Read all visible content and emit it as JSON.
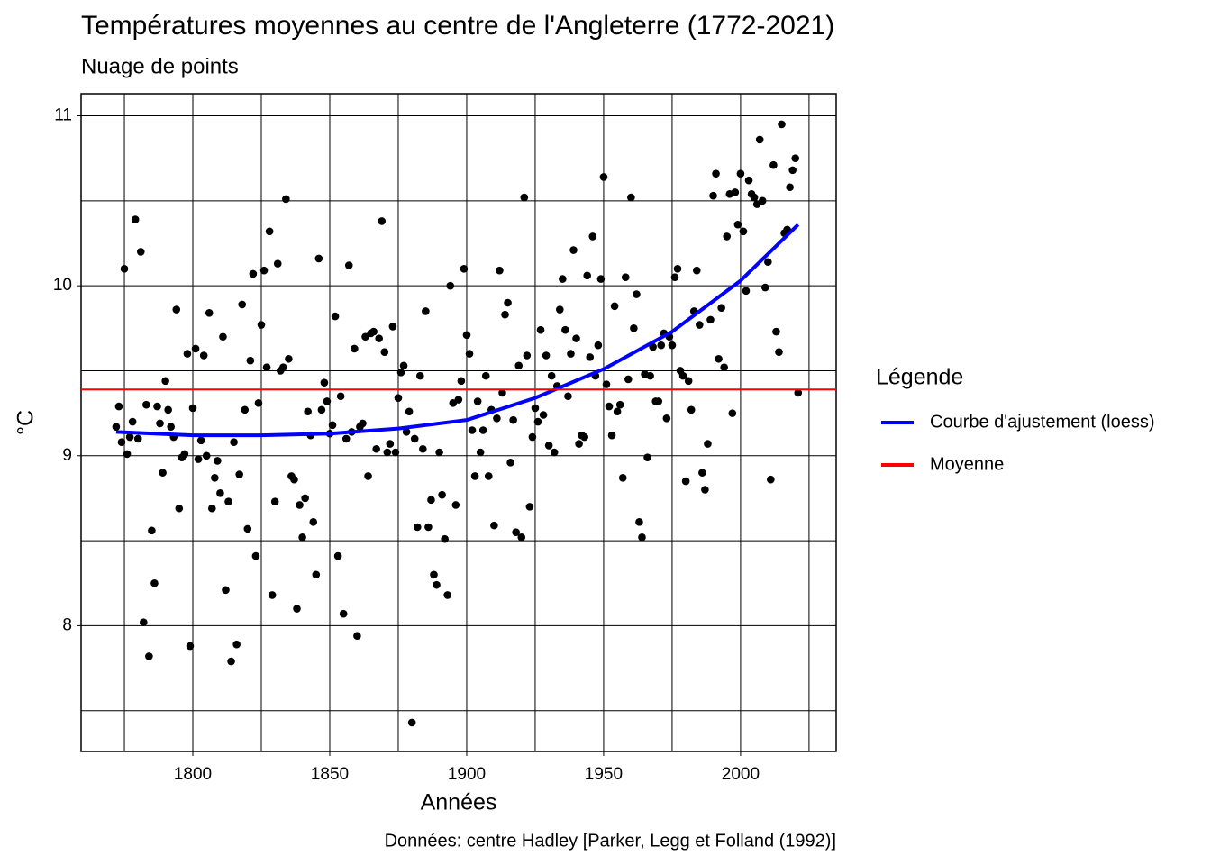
{
  "chart_data": {
    "type": "scatter",
    "title": "Températures moyennes au centre de l'Angleterre (1772-2021)",
    "subtitle": "Nuage de points",
    "xlabel": "Années",
    "ylabel": "°C",
    "caption": "Données: centre Hadley [Parker, Legg et Folland (1992)]",
    "legend_title": "Légende",
    "legend_position": "right",
    "xlim": [
      1759.2,
      2034.9
    ],
    "ylim": [
      7.26,
      11.13
    ],
    "xticks": [
      1800,
      1850,
      1900,
      1950,
      2000
    ],
    "yticks": [
      8,
      9,
      10,
      11
    ],
    "x_minor_grid": [
      1775,
      1825,
      1875,
      1925,
      1975,
      2025
    ],
    "y_minor_grid": [
      7.5,
      8.5,
      9.5,
      10.5
    ],
    "grid": true,
    "points": {
      "color": "#000000",
      "x": [
        1772,
        1773,
        1774,
        1775,
        1776,
        1777,
        1778,
        1779,
        1780,
        1781,
        1782,
        1783,
        1784,
        1785,
        1786,
        1787,
        1788,
        1789,
        1790,
        1791,
        1792,
        1793,
        1794,
        1795,
        1796,
        1797,
        1798,
        1799,
        1800,
        1801,
        1802,
        1803,
        1804,
        1805,
        1806,
        1807,
        1808,
        1809,
        1810,
        1811,
        1812,
        1813,
        1814,
        1815,
        1816,
        1817,
        1818,
        1819,
        1820,
        1821,
        1822,
        1823,
        1824,
        1825,
        1826,
        1827,
        1828,
        1829,
        1830,
        1831,
        1832,
        1833,
        1834,
        1835,
        1836,
        1837,
        1838,
        1839,
        1840,
        1841,
        1842,
        1843,
        1844,
        1845,
        1846,
        1847,
        1848,
        1849,
        1850,
        1851,
        1852,
        1853,
        1854,
        1855,
        1856,
        1857,
        1858,
        1859,
        1860,
        1861,
        1862,
        1863,
        1864,
        1865,
        1866,
        1867,
        1868,
        1869,
        1870,
        1871,
        1872,
        1873,
        1874,
        1875,
        1876,
        1877,
        1878,
        1879,
        1880,
        1881,
        1882,
        1883,
        1884,
        1885,
        1886,
        1887,
        1888,
        1889,
        1890,
        1891,
        1892,
        1893,
        1894,
        1895,
        1896,
        1897,
        1898,
        1899,
        1900,
        1901,
        1902,
        1903,
        1904,
        1905,
        1906,
        1907,
        1908,
        1909,
        1910,
        1911,
        1912,
        1913,
        1914,
        1915,
        1916,
        1917,
        1918,
        1919,
        1920,
        1921,
        1922,
        1923,
        1924,
        1925,
        1926,
        1927,
        1928,
        1929,
        1930,
        1931,
        1932,
        1933,
        1934,
        1935,
        1936,
        1937,
        1938,
        1939,
        1940,
        1941,
        1942,
        1943,
        1944,
        1945,
        1946,
        1947,
        1948,
        1949,
        1950,
        1951,
        1952,
        1953,
        1954,
        1955,
        1956,
        1957,
        1958,
        1959,
        1960,
        1961,
        1962,
        1963,
        1964,
        1965,
        1966,
        1967,
        1968,
        1969,
        1970,
        1971,
        1972,
        1973,
        1974,
        1975,
        1976,
        1977,
        1978,
        1979,
        1980,
        1981,
        1982,
        1983,
        1984,
        1985,
        1986,
        1987,
        1988,
        1989,
        1990,
        1991,
        1992,
        1993,
        1994,
        1995,
        1996,
        1997,
        1998,
        1999,
        2000,
        2001,
        2002,
        2003,
        2004,
        2005,
        2006,
        2007,
        2008,
        2009,
        2010,
        2011,
        2012,
        2013,
        2014,
        2015,
        2016,
        2017,
        2018,
        2019,
        2020,
        2021
      ],
      "values": [
        9.17,
        9.29,
        9.08,
        10.1,
        9.01,
        9.11,
        9.2,
        10.39,
        9.1,
        10.2,
        8.02,
        9.3,
        7.82,
        8.56,
        8.25,
        9.29,
        9.19,
        8.9,
        9.44,
        9.27,
        9.17,
        9.11,
        9.86,
        8.69,
        8.99,
        9.01,
        9.6,
        7.88,
        9.28,
        9.63,
        8.98,
        9.09,
        9.59,
        9.0,
        9.84,
        8.69,
        8.87,
        8.97,
        8.78,
        9.7,
        8.21,
        8.73,
        7.79,
        9.08,
        7.89,
        8.89,
        9.89,
        9.27,
        8.57,
        9.56,
        10.07,
        8.41,
        9.31,
        9.77,
        10.09,
        9.52,
        10.32,
        8.18,
        8.73,
        10.13,
        9.5,
        9.52,
        10.51,
        9.57,
        8.88,
        8.86,
        8.1,
        8.71,
        8.52,
        8.75,
        9.26,
        9.12,
        8.61,
        8.3,
        10.16,
        9.27,
        9.43,
        9.32,
        9.13,
        9.18,
        9.82,
        8.41,
        9.35,
        8.07,
        9.1,
        10.12,
        9.14,
        9.63,
        7.94,
        9.17,
        9.19,
        9.7,
        8.88,
        9.72,
        9.73,
        9.04,
        9.69,
        10.38,
        9.61,
        9.02,
        9.07,
        9.76,
        9.02,
        9.34,
        9.49,
        9.53,
        9.14,
        9.26,
        7.43,
        9.1,
        8.58,
        9.47,
        9.04,
        9.85,
        8.58,
        8.74,
        8.3,
        8.24,
        9.02,
        8.77,
        8.51,
        8.18,
        10.0,
        9.31,
        8.71,
        9.33,
        9.44,
        10.1,
        9.71,
        9.6,
        9.15,
        8.88,
        9.32,
        9.02,
        9.15,
        9.47,
        8.88,
        9.27,
        8.59,
        9.22,
        10.09,
        9.37,
        9.83,
        9.9,
        8.96,
        9.21,
        8.55,
        9.53,
        8.52,
        10.52,
        9.59,
        8.7,
        9.11,
        9.28,
        9.2,
        9.74,
        9.24,
        9.59,
        9.06,
        9.47,
        9.02,
        9.41,
        9.86,
        10.04,
        9.74,
        9.35,
        9.6,
        10.21,
        9.69,
        9.07,
        9.12,
        9.11,
        10.06,
        9.58,
        10.29,
        9.47,
        9.65,
        10.04,
        10.64,
        9.42,
        9.29,
        9.12,
        9.88,
        9.26,
        9.3,
        8.87,
        10.05,
        9.45,
        10.52,
        9.75,
        9.95,
        8.61,
        8.52,
        9.48,
        8.99,
        9.47,
        9.64,
        9.32,
        9.32,
        9.65,
        9.72,
        9.22,
        9.7,
        9.65,
        10.05,
        10.1,
        9.5,
        9.47,
        8.85,
        9.44,
        9.27,
        9.85,
        10.09,
        9.77,
        8.9,
        8.8,
        9.07,
        9.8,
        10.53,
        10.66,
        9.57,
        9.87,
        9.52,
        10.29,
        10.54,
        9.25,
        10.55,
        10.36,
        10.66,
        10.32,
        9.97,
        10.62,
        10.54,
        10.52,
        10.48,
        10.86,
        10.5,
        9.99,
        10.14,
        8.86,
        10.71,
        9.73,
        9.61,
        10.95,
        10.31,
        10.33,
        10.58,
        10.68,
        10.75,
        9.37
      ]
    },
    "series": [
      {
        "name": "Courbe d'ajustement (loess)",
        "color": "#0000ff",
        "x": [
          1772,
          1800,
          1825,
          1850,
          1875,
          1900,
          1925,
          1950,
          1975,
          2000,
          2021
        ],
        "values": [
          9.14,
          9.12,
          9.12,
          9.13,
          9.16,
          9.21,
          9.34,
          9.51,
          9.73,
          10.03,
          10.36
        ]
      },
      {
        "name": "Moyenne",
        "color": "#ff0000",
        "hline": 9.39
      }
    ]
  }
}
